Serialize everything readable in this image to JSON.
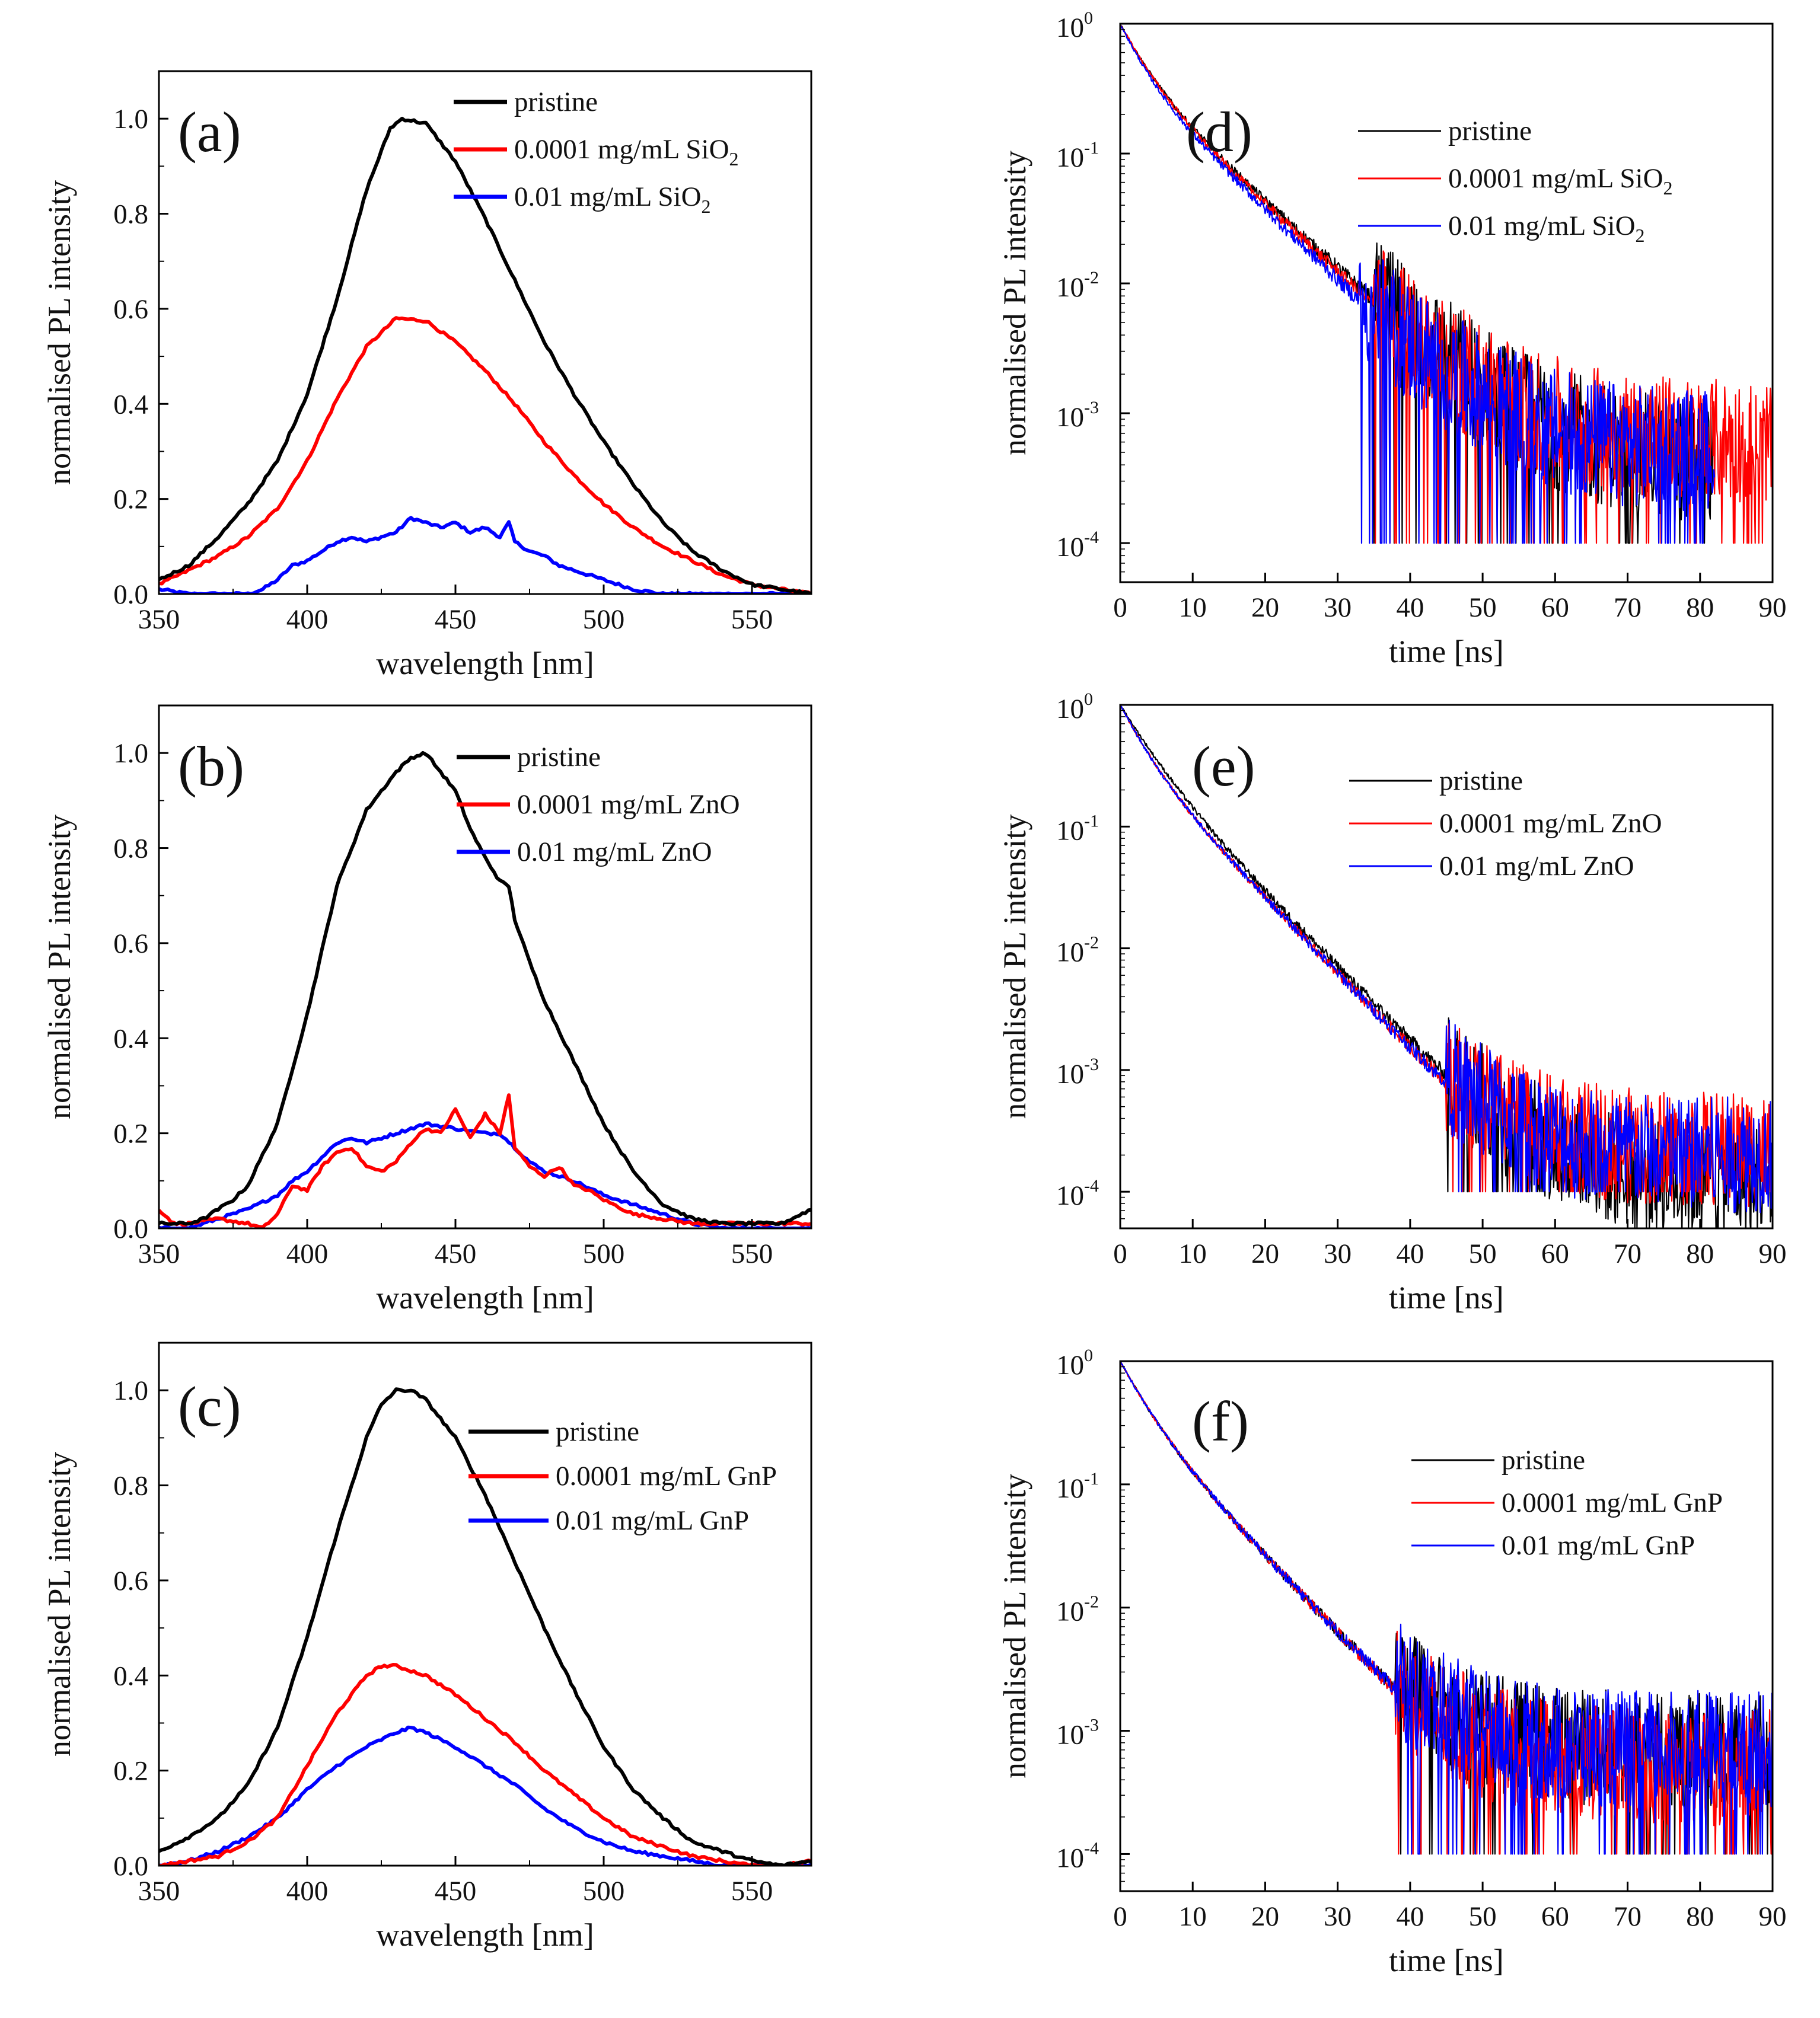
{
  "chart_data": [
    {
      "id": "a",
      "panel": "(a)",
      "type": "line",
      "scale": "linear",
      "xlabel": "wavelength [nm]",
      "ylabel": "normalised PL intensity",
      "xlim": [
        350,
        570
      ],
      "ylim": [
        0,
        1.1
      ],
      "xticks": [
        350,
        400,
        450,
        500,
        550
      ],
      "yticks": [
        0.0,
        0.2,
        0.4,
        0.6,
        0.8,
        1.0
      ],
      "ytick_labels": [
        "0.0",
        "0.2",
        "0.4",
        "0.6",
        "0.8",
        "1.0"
      ],
      "legend_position": "top-right",
      "series": [
        {
          "name": "pristine",
          "label": "pristine",
          "color": "#000000",
          "x": [
            350,
            360,
            370,
            380,
            390,
            400,
            410,
            420,
            428,
            432,
            440,
            450,
            460,
            470,
            480,
            490,
            500,
            510,
            520,
            530,
            540,
            550,
            560,
            570
          ],
          "y": [
            0.03,
            0.06,
            0.12,
            0.19,
            0.28,
            0.42,
            0.62,
            0.85,
            0.98,
            1.0,
            0.99,
            0.91,
            0.79,
            0.66,
            0.53,
            0.42,
            0.32,
            0.23,
            0.15,
            0.09,
            0.05,
            0.02,
            0.01,
            0.0
          ]
        },
        {
          "name": "0.0001 mg/mL SiO2",
          "label": "0.0001 mg/mL SiO",
          "label_sub": "2",
          "color": "#ff0000",
          "x": [
            350,
            360,
            370,
            380,
            390,
            400,
            410,
            420,
            430,
            440,
            450,
            460,
            470,
            480,
            490,
            500,
            510,
            520,
            530,
            540,
            550,
            560,
            570
          ],
          "y": [
            0.02,
            0.05,
            0.08,
            0.12,
            0.18,
            0.28,
            0.41,
            0.52,
            0.58,
            0.575,
            0.53,
            0.47,
            0.4,
            0.32,
            0.25,
            0.19,
            0.14,
            0.1,
            0.07,
            0.04,
            0.02,
            0.01,
            0.0
          ]
        },
        {
          "name": "0.01 mg/mL SiO2",
          "label": "0.01 mg/mL SiO",
          "label_sub": "2",
          "color": "#0000ff",
          "x": [
            350,
            360,
            370,
            380,
            385,
            390,
            395,
            400,
            405,
            410,
            415,
            420,
            425,
            430,
            435,
            440,
            445,
            450,
            455,
            460,
            465,
            468,
            470,
            475,
            480,
            485,
            490,
            495,
            500,
            510,
            520,
            530,
            540,
            550,
            560,
            570
          ],
          "y": [
            0.01,
            0.0,
            0.0,
            0.0,
            0.01,
            0.03,
            0.06,
            0.07,
            0.09,
            0.11,
            0.12,
            0.11,
            0.12,
            0.13,
            0.16,
            0.15,
            0.14,
            0.15,
            0.13,
            0.14,
            0.12,
            0.15,
            0.11,
            0.09,
            0.08,
            0.06,
            0.05,
            0.04,
            0.03,
            0.01,
            0.0,
            0.0,
            0.0,
            0.0,
            0.0,
            0.0
          ]
        }
      ]
    },
    {
      "id": "b",
      "panel": "(b)",
      "type": "line",
      "scale": "linear",
      "xlabel": "wavelength [nm]",
      "ylabel": "normalised PL intensity",
      "xlim": [
        350,
        570
      ],
      "ylim": [
        0,
        1.1
      ],
      "xticks": [
        350,
        400,
        450,
        500,
        550
      ],
      "yticks": [
        0.0,
        0.2,
        0.4,
        0.6,
        0.8,
        1.0
      ],
      "ytick_labels": [
        "0.0",
        "0.2",
        "0.4",
        "0.6",
        "0.8",
        "1.0"
      ],
      "legend_position": "top-right",
      "series": [
        {
          "name": "pristine",
          "label": "pristine",
          "color": "#000000",
          "x": [
            350,
            360,
            365,
            370,
            375,
            380,
            390,
            400,
            410,
            420,
            430,
            435,
            440,
            445,
            450,
            455,
            460,
            465,
            468,
            470,
            475,
            480,
            490,
            500,
            510,
            520,
            530,
            540,
            550,
            560,
            570
          ],
          "y": [
            0.01,
            0.01,
            0.02,
            0.04,
            0.06,
            0.09,
            0.22,
            0.45,
            0.72,
            0.88,
            0.96,
            0.99,
            1.0,
            0.96,
            0.92,
            0.84,
            0.78,
            0.73,
            0.72,
            0.65,
            0.56,
            0.48,
            0.35,
            0.22,
            0.12,
            0.05,
            0.02,
            0.01,
            0.01,
            0.01,
            0.04
          ]
        },
        {
          "name": "0.0001 mg/mL ZnO",
          "label": "0.0001 mg/mL ZnO",
          "color": "#ff0000",
          "x": [
            350,
            355,
            360,
            370,
            380,
            385,
            390,
            395,
            400,
            405,
            410,
            415,
            420,
            425,
            430,
            435,
            440,
            445,
            450,
            455,
            460,
            465,
            468,
            470,
            475,
            480,
            485,
            490,
            495,
            500,
            510,
            520,
            530,
            540,
            550,
            560,
            570
          ],
          "y": [
            0.04,
            0.01,
            0.01,
            0.02,
            0.01,
            0.0,
            0.03,
            0.09,
            0.08,
            0.13,
            0.16,
            0.17,
            0.13,
            0.12,
            0.14,
            0.18,
            0.21,
            0.2,
            0.25,
            0.19,
            0.24,
            0.2,
            0.28,
            0.17,
            0.13,
            0.11,
            0.13,
            0.09,
            0.08,
            0.06,
            0.03,
            0.02,
            0.01,
            0.01,
            0.01,
            0.01,
            0.01
          ]
        },
        {
          "name": "0.01 mg/mL ZnO",
          "label": "0.01 mg/mL ZnO",
          "color": "#0000ff",
          "x": [
            350,
            360,
            370,
            380,
            390,
            395,
            400,
            405,
            410,
            415,
            420,
            425,
            430,
            440,
            450,
            460,
            465,
            470,
            475,
            480,
            490,
            500,
            510,
            520,
            530,
            540,
            550,
            560,
            570
          ],
          "y": [
            0.0,
            0.0,
            0.02,
            0.04,
            0.07,
            0.1,
            0.12,
            0.15,
            0.18,
            0.19,
            0.18,
            0.19,
            0.2,
            0.22,
            0.21,
            0.2,
            0.2,
            0.17,
            0.14,
            0.12,
            0.1,
            0.07,
            0.05,
            0.03,
            0.01,
            0.0,
            0.0,
            0.0,
            0.0
          ]
        }
      ]
    },
    {
      "id": "c",
      "panel": "(c)",
      "type": "line",
      "scale": "linear",
      "xlabel": "wavelength [nm]",
      "ylabel": "normalised PL intensity",
      "xlim": [
        350,
        570
      ],
      "ylim": [
        0,
        1.1
      ],
      "xticks": [
        350,
        400,
        450,
        500,
        550
      ],
      "yticks": [
        0.0,
        0.2,
        0.4,
        0.6,
        0.8,
        1.0
      ],
      "ytick_labels": [
        "0.0",
        "0.2",
        "0.4",
        "0.6",
        "0.8",
        "1.0"
      ],
      "legend_position": "top-right",
      "series": [
        {
          "name": "pristine",
          "label": "pristine",
          "color": "#000000",
          "x": [
            350,
            360,
            370,
            380,
            390,
            400,
            410,
            420,
            425,
            430,
            435,
            440,
            450,
            460,
            470,
            480,
            490,
            500,
            510,
            520,
            530,
            540,
            550,
            560,
            570
          ],
          "y": [
            0.03,
            0.06,
            0.1,
            0.17,
            0.29,
            0.48,
            0.7,
            0.9,
            0.97,
            1.0,
            1.0,
            0.98,
            0.9,
            0.78,
            0.64,
            0.5,
            0.37,
            0.25,
            0.16,
            0.1,
            0.05,
            0.03,
            0.01,
            0.0,
            0.01
          ]
        },
        {
          "name": "0.0001 mg/mL GnP",
          "label": "0.0001 mg/mL GnP",
          "color": "#ff0000",
          "x": [
            350,
            360,
            370,
            380,
            390,
            400,
            410,
            420,
            425,
            430,
            440,
            450,
            460,
            470,
            480,
            490,
            500,
            510,
            520,
            530,
            540,
            550,
            560,
            570
          ],
          "y": [
            0.0,
            0.01,
            0.02,
            0.05,
            0.1,
            0.21,
            0.32,
            0.4,
            0.42,
            0.42,
            0.4,
            0.36,
            0.31,
            0.26,
            0.2,
            0.15,
            0.1,
            0.06,
            0.04,
            0.02,
            0.01,
            0.0,
            0.0,
            0.01
          ]
        },
        {
          "name": "0.01 mg/mL GnP",
          "label": "0.01 mg/mL GnP",
          "color": "#0000ff",
          "x": [
            350,
            360,
            370,
            380,
            390,
            400,
            410,
            420,
            430,
            435,
            440,
            450,
            460,
            470,
            480,
            490,
            500,
            510,
            520,
            530,
            540,
            550,
            560,
            570
          ],
          "y": [
            0.0,
            0.01,
            0.03,
            0.06,
            0.1,
            0.16,
            0.21,
            0.25,
            0.28,
            0.29,
            0.28,
            0.25,
            0.21,
            0.17,
            0.12,
            0.08,
            0.05,
            0.03,
            0.02,
            0.01,
            0.0,
            0.0,
            0.0,
            0.0
          ]
        }
      ]
    },
    {
      "id": "d",
      "panel": "(d)",
      "type": "line",
      "scale": "log",
      "xlabel": "time [ns]",
      "ylabel": "normalised PL intensity",
      "xlim": [
        0,
        90
      ],
      "ylim": [
        5e-05,
        1
      ],
      "xticks": [
        0,
        10,
        20,
        30,
        40,
        50,
        60,
        70,
        80,
        90
      ],
      "yticks": [
        0.0001,
        0.001,
        0.01,
        0.1,
        1
      ],
      "ytick_labels": [
        "10",
        "10",
        "10",
        "10",
        "10"
      ],
      "ytick_exponents": [
        "-4",
        "-3",
        "-2",
        "-1",
        "0"
      ],
      "legend_position": "top-right",
      "series": [
        {
          "name": "pristine",
          "label": "pristine",
          "color": "#000000",
          "tau_fast": 3.0,
          "tau_slow": 8.5,
          "floor": 0.0004,
          "noise_start": 35,
          "cutoff": 82
        },
        {
          "name": "0.0001 mg/mL SiO2",
          "label": "0.0001 mg/mL SiO",
          "label_sub": "2",
          "color": "#ff0000",
          "tau_fast": 3.0,
          "tau_slow": 8.3,
          "floor": 0.0006,
          "noise_start": 35,
          "cutoff": 90
        },
        {
          "name": "0.01 mg/mL SiO2",
          "label": "0.01 mg/mL SiO",
          "label_sub": "2",
          "color": "#0000ff",
          "tau_fast": 2.7,
          "tau_slow": 8.0,
          "floor": 0.0005,
          "noise_start": 33,
          "cutoff": 82
        }
      ]
    },
    {
      "id": "e",
      "panel": "(e)",
      "type": "line",
      "scale": "log",
      "xlabel": "time [ns]",
      "ylabel": "normalised PL intensity",
      "xlim": [
        0,
        90
      ],
      "ylim": [
        5e-05,
        1
      ],
      "xticks": [
        0,
        10,
        20,
        30,
        40,
        50,
        60,
        70,
        80,
        90
      ],
      "yticks": [
        0.0001,
        0.001,
        0.01,
        0.1,
        1
      ],
      "ytick_labels": [
        "10",
        "10",
        "10",
        "10",
        "10"
      ],
      "ytick_exponents": [
        "-4",
        "-3",
        "-2",
        "-1",
        "0"
      ],
      "legend_position": "top-right",
      "series": [
        {
          "name": "pristine",
          "label": "pristine",
          "color": "#000000",
          "tau_fast": 3.5,
          "tau_slow": 7.2,
          "floor": 0.00012,
          "noise_start": 45,
          "cutoff": 90
        },
        {
          "name": "0.0001 mg/mL ZnO",
          "label": "0.0001 mg/mL ZnO",
          "color": "#ff0000",
          "tau_fast": 2.8,
          "tau_slow": 7.0,
          "floor": 0.00022,
          "noise_start": 45,
          "cutoff": 90
        },
        {
          "name": "0.01 mg/mL ZnO",
          "label": "0.01 mg/mL ZnO",
          "color": "#0000ff",
          "tau_fast": 2.8,
          "tau_slow": 7.0,
          "floor": 0.0002,
          "noise_start": 45,
          "cutoff": 90
        }
      ]
    },
    {
      "id": "f",
      "panel": "(f)",
      "type": "line",
      "scale": "log",
      "xlabel": "time [ns]",
      "ylabel": "normalised PL intensity",
      "xlim": [
        0,
        90
      ],
      "ylim": [
        5e-05,
        1
      ],
      "xticks": [
        0,
        10,
        20,
        30,
        40,
        50,
        60,
        70,
        80,
        90
      ],
      "yticks": [
        0.0001,
        0.001,
        0.01,
        0.1,
        1
      ],
      "ytick_labels": [
        "10",
        "10",
        "10",
        "10",
        "10"
      ],
      "ytick_exponents": [
        "-4",
        "-3",
        "-2",
        "-1",
        "0"
      ],
      "legend_position": "top-right",
      "series": [
        {
          "name": "pristine",
          "label": "pristine",
          "color": "#000000",
          "tau_fast": 3.0,
          "tau_slow": 7.0,
          "floor": 0.0007,
          "noise_start": 38,
          "cutoff": 90
        },
        {
          "name": "0.0001 mg/mL GnP",
          "label": "0.0001 mg/mL GnP",
          "color": "#ff0000",
          "tau_fast": 3.0,
          "tau_slow": 7.0,
          "floor": 0.0005,
          "noise_start": 38,
          "cutoff": 90
        },
        {
          "name": "0.01 mg/mL GnP",
          "label": "0.01 mg/mL GnP",
          "color": "#0000ff",
          "tau_fast": 3.0,
          "tau_slow": 7.0,
          "floor": 0.0007,
          "noise_start": 38,
          "cutoff": 90
        }
      ]
    }
  ]
}
